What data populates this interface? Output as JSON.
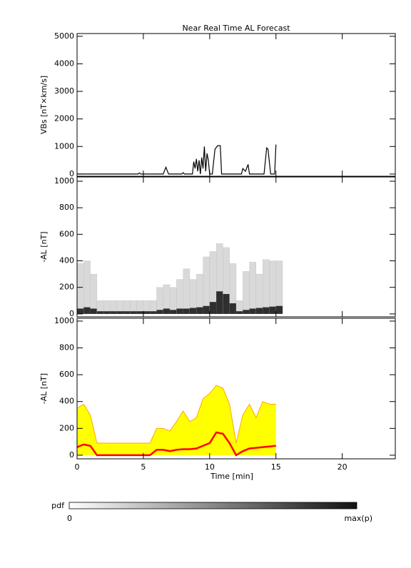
{
  "chart_data": [
    {
      "type": "line",
      "title": "Near Real Time AL Forecast",
      "ylabel": "VBs [nT×km/s]",
      "color": "#000000",
      "x": [
        0,
        4.6,
        4.7,
        4.8,
        6.5,
        6.7,
        6.9,
        7.9,
        8.0,
        8.1,
        8.7,
        8.8,
        8.9,
        9.0,
        9.1,
        9.2,
        9.3,
        9.4,
        9.5,
        9.6,
        9.7,
        9.8,
        9.9,
        10.0,
        10.2,
        10.4,
        10.6,
        10.8,
        10.9,
        12.4,
        12.5,
        12.7,
        12.9,
        13.0,
        13.1,
        14.1,
        14.3,
        14.4,
        14.6,
        14.9,
        15.0
      ],
      "values": [
        0,
        0,
        40,
        0,
        0,
        250,
        0,
        0,
        50,
        0,
        0,
        450,
        200,
        550,
        100,
        500,
        0,
        600,
        200,
        1000,
        100,
        750,
        500,
        0,
        0,
        900,
        1030,
        1030,
        0,
        0,
        200,
        100,
        350,
        0,
        0,
        0,
        950,
        900,
        0,
        0,
        1070
      ],
      "ylim": [
        -80,
        5100
      ],
      "yticks": [
        0,
        1000,
        2000,
        3000,
        4000,
        5000
      ]
    },
    {
      "type": "heatmap",
      "ylabel": "-AL [nT]",
      "light_color": "#d9d9d9",
      "dark_color": "#111111",
      "x": [
        0,
        0.5,
        1,
        1.5,
        2,
        2.5,
        3,
        3.5,
        4,
        4.5,
        5,
        5.5,
        6,
        6.5,
        7,
        7.5,
        8,
        8.5,
        9,
        9.5,
        10,
        10.5,
        11,
        11.5,
        12,
        12.5,
        13,
        13.5,
        14,
        14.5,
        15
      ],
      "upper": [
        380,
        400,
        300,
        100,
        100,
        100,
        100,
        100,
        100,
        100,
        100,
        100,
        200,
        220,
        200,
        260,
        340,
        260,
        300,
        430,
        470,
        530,
        500,
        380,
        100,
        320,
        390,
        300,
        410,
        400,
        400
      ],
      "mode": [
        40,
        50,
        40,
        20,
        20,
        20,
        20,
        20,
        20,
        20,
        20,
        20,
        30,
        40,
        30,
        40,
        40,
        45,
        50,
        60,
        90,
        170,
        150,
        80,
        20,
        30,
        40,
        45,
        50,
        55,
        60
      ],
      "ylim": [
        -22,
        1032
      ],
      "yticks": [
        0,
        200,
        400,
        600,
        800,
        1000
      ],
      "colorbar": {
        "label": "pdf",
        "min_label": "0",
        "max_label": "max(p)"
      }
    },
    {
      "type": "area",
      "ylabel": "-AL [nT]",
      "xlabel": "Time [min]",
      "fill_color": "#ffff00",
      "upper_color": "#ffa500",
      "median_color": "#ff0000",
      "x": [
        0,
        0.5,
        1,
        1.5,
        2,
        2.5,
        3,
        3.5,
        4,
        4.5,
        5,
        5.5,
        6,
        6.5,
        7,
        7.5,
        8,
        8.5,
        9,
        9.5,
        10,
        10.5,
        11,
        11.5,
        12,
        12.5,
        13,
        13.5,
        14,
        14.5,
        15
      ],
      "upper": [
        350,
        380,
        300,
        90,
        90,
        90,
        90,
        90,
        90,
        90,
        90,
        90,
        200,
        200,
        180,
        250,
        330,
        250,
        280,
        420,
        460,
        520,
        500,
        380,
        90,
        300,
        380,
        280,
        400,
        380,
        380
      ],
      "median": [
        60,
        80,
        70,
        0,
        0,
        0,
        0,
        0,
        0,
        0,
        0,
        0,
        40,
        40,
        30,
        40,
        45,
        45,
        50,
        70,
        90,
        170,
        160,
        90,
        0,
        30,
        50,
        55,
        60,
        65,
        70
      ],
      "xlim": [
        0,
        24
      ],
      "xticks": [
        0,
        5,
        10,
        15,
        20
      ],
      "ylim": [
        -27,
        1021
      ],
      "yticks": [
        0,
        200,
        400,
        600,
        800,
        1000
      ]
    }
  ]
}
